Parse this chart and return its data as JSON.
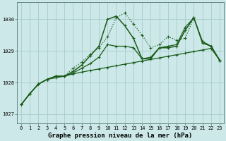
{
  "bg_color": "#cce8e8",
  "grid_color": "#aacccc",
  "line_color": "#1a5c1a",
  "title": "Graphe pression niveau de la mer (hPa)",
  "xlim": [
    -0.5,
    23.5
  ],
  "ylim": [
    1026.7,
    1030.55
  ],
  "yticks": [
    1027,
    1028,
    1029,
    1030
  ],
  "xticks": [
    0,
    1,
    2,
    3,
    4,
    5,
    6,
    7,
    8,
    9,
    10,
    11,
    12,
    13,
    14,
    15,
    16,
    17,
    18,
    19,
    20,
    21,
    22,
    23
  ],
  "series": [
    {
      "x": [
        0,
        1,
        2,
        3,
        4,
        5,
        6,
        7,
        8,
        9,
        10,
        11,
        12,
        13,
        14,
        15,
        16,
        17,
        18,
        19,
        20,
        21,
        22,
        23
      ],
      "y": [
        1027.3,
        1027.65,
        1027.95,
        1028.1,
        1028.15,
        1028.2,
        1028.27,
        1028.33,
        1028.38,
        1028.43,
        1028.48,
        1028.53,
        1028.58,
        1028.63,
        1028.68,
        1028.73,
        1028.78,
        1028.83,
        1028.88,
        1028.93,
        1028.98,
        1029.03,
        1029.08,
        1028.7
      ],
      "style": "-",
      "marker": "P",
      "markersize": 2.5,
      "linewidth": 0.9
    },
    {
      "x": [
        0,
        1,
        2,
        3,
        4,
        5,
        6,
        7,
        8,
        9,
        10,
        11,
        12,
        13,
        14,
        15,
        16,
        17,
        18,
        19,
        20,
        21,
        22,
        23
      ],
      "y": [
        1027.3,
        1027.65,
        1027.95,
        1028.1,
        1028.2,
        1028.2,
        1028.3,
        1028.45,
        1028.6,
        1028.8,
        1029.2,
        1029.15,
        1029.15,
        1029.1,
        1028.75,
        1028.8,
        1029.1,
        1029.15,
        1029.2,
        1029.75,
        1030.05,
        1029.3,
        1029.15,
        1028.7
      ],
      "style": "-",
      "marker": "P",
      "markersize": 2.5,
      "linewidth": 0.9
    },
    {
      "x": [
        0,
        1,
        2,
        3,
        4,
        5,
        6,
        7,
        8,
        9,
        10,
        11,
        12,
        13,
        14,
        15,
        16,
        17,
        18,
        19,
        20,
        21,
        22,
        23
      ],
      "y": [
        1027.3,
        1027.65,
        1027.95,
        1028.1,
        1028.2,
        1028.2,
        1028.45,
        1028.65,
        1028.9,
        1029.1,
        1029.45,
        1030.05,
        1030.2,
        1029.85,
        1029.5,
        1029.1,
        1029.2,
        1029.45,
        1029.35,
        1029.4,
        1030.05,
        1029.3,
        1029.15,
        1028.7
      ],
      "style": ":",
      "marker": "P",
      "markersize": 2.5,
      "linewidth": 0.9
    },
    {
      "x": [
        0,
        1,
        2,
        3,
        4,
        5,
        6,
        7,
        8,
        9,
        10,
        11,
        12,
        13,
        14,
        15,
        16,
        17,
        18,
        19,
        20,
        21,
        22,
        23
      ],
      "y": [
        1027.3,
        1027.65,
        1027.95,
        1028.1,
        1028.2,
        1028.2,
        1028.35,
        1028.55,
        1028.85,
        1029.15,
        1030.0,
        1030.1,
        1029.8,
        1029.4,
        1028.75,
        1028.75,
        1029.1,
        1029.1,
        1029.15,
        1029.65,
        1030.05,
        1029.25,
        1029.15,
        1028.7
      ],
      "style": "-",
      "marker": "P",
      "markersize": 2.5,
      "linewidth": 1.1
    }
  ],
  "title_fontsize": 6.5,
  "tick_fontsize": 5.0
}
